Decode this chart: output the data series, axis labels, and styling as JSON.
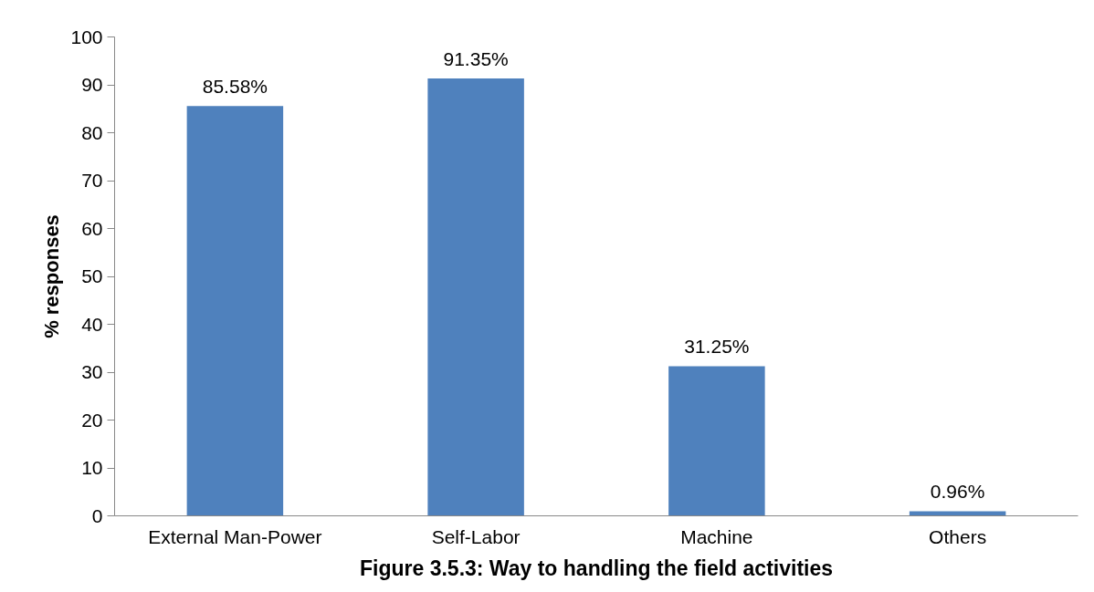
{
  "chart_data": {
    "type": "bar",
    "title": "Figure 3.5.3: Way to handling the field activities",
    "ylabel": "% responses",
    "categories": [
      "External Man-Power",
      "Self-Labor",
      "Machine",
      "Others"
    ],
    "values": [
      85.58,
      91.35,
      31.25,
      0.96
    ],
    "value_labels": [
      "85.58%",
      "91.35%",
      "31.25%",
      "0.96%"
    ],
    "color": "#4f81bd",
    "ylim": [
      0,
      100
    ],
    "yticks": [
      0,
      10,
      20,
      30,
      40,
      50,
      60,
      70,
      80,
      90,
      100
    ],
    "grid": false
  }
}
